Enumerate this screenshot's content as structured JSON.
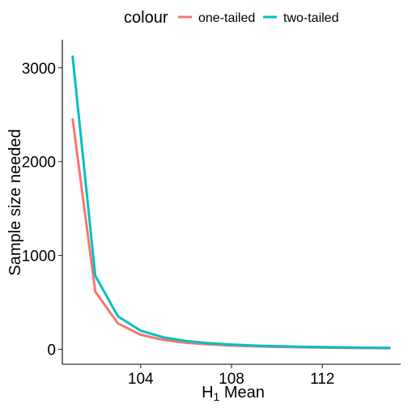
{
  "legend": {
    "title": "colour",
    "position": "top"
  },
  "colors": {
    "one_tailed": "#F8766D",
    "two_tailed": "#00BFC4"
  },
  "chart_data": {
    "type": "line",
    "title": "",
    "xlabel": "H",
    "xlabel_sub": "1",
    "xlabel_rest": " Mean",
    "ylabel": "Sample size needed",
    "xlim": [
      100.55,
      115.45
    ],
    "ylim": [
      -160,
      3300
    ],
    "x_ticks": [
      104,
      108,
      112
    ],
    "x_tick_labels": [
      "104",
      "108",
      "112"
    ],
    "y_ticks": [
      0,
      1000,
      2000,
      3000
    ],
    "y_tick_labels": [
      "0",
      "1000",
      "2000",
      "3000"
    ],
    "grid": false,
    "x": [
      101,
      102,
      103,
      104,
      105,
      106,
      107,
      108,
      109,
      110,
      111,
      112,
      113,
      114,
      115
    ],
    "series": [
      {
        "name": "one-tailed",
        "color": "#F8766D",
        "values": [
          2460,
          615,
          275,
          155,
          100,
          70,
          52,
          40,
          32,
          26,
          22,
          18,
          15,
          13,
          12
        ]
      },
      {
        "name": "two-tailed",
        "color": "#00BFC4",
        "values": [
          3130,
          785,
          350,
          198,
          127,
          88,
          65,
          50,
          40,
          33,
          27,
          23,
          20,
          17,
          15
        ]
      }
    ]
  }
}
